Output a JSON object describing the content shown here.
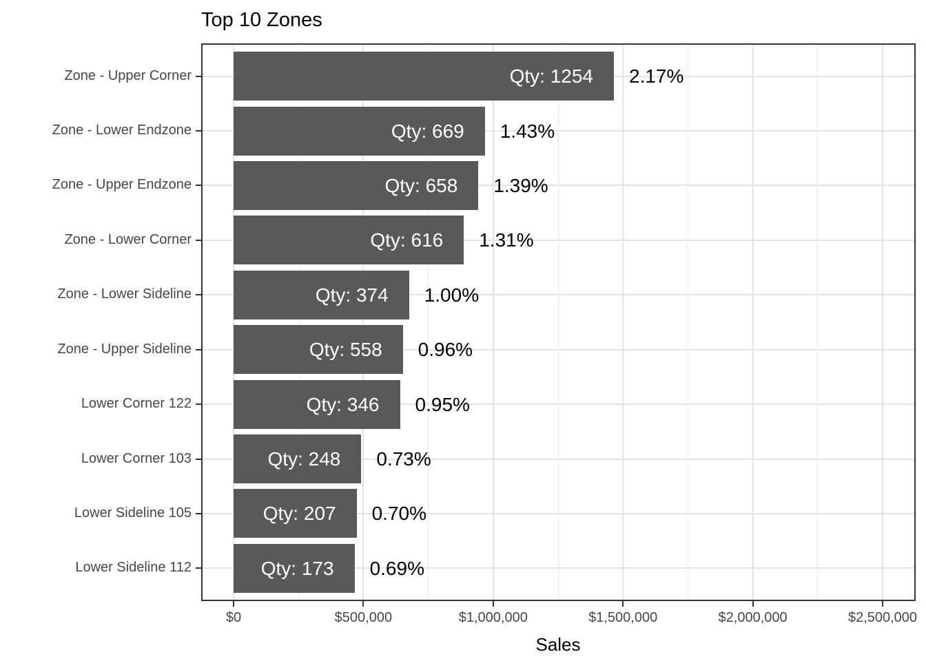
{
  "chart_data": {
    "type": "bar",
    "orientation": "horizontal",
    "title": "Top 10 Zones",
    "xlabel": "Sales",
    "ylabel": "",
    "xlim": [
      0,
      2500000
    ],
    "grid": "major-vertical-and-horizontal-with-minor-vertical",
    "legend": "none",
    "x_ticks": [
      {
        "value": 0,
        "label": "$0"
      },
      {
        "value": 500000,
        "label": "$500,000"
      },
      {
        "value": 1000000,
        "label": "$1,000,000"
      },
      {
        "value": 1500000,
        "label": "$1,500,000"
      },
      {
        "value": 2000000,
        "label": "$2,000,000"
      },
      {
        "value": 2500000,
        "label": "$2,500,000"
      }
    ],
    "x_minor_ticks": [
      250000,
      750000,
      1250000,
      1750000,
      2250000
    ],
    "bars": [
      {
        "zone": "Zone - Upper Corner",
        "sales_est": 1465000,
        "qty": 1254,
        "qty_label": "Qty: 1254",
        "pct_label": "2.17%"
      },
      {
        "zone": "Zone - Lower Endzone",
        "sales_est": 968000,
        "qty": 669,
        "qty_label": "Qty: 669",
        "pct_label": "1.43%"
      },
      {
        "zone": "Zone - Upper Endzone",
        "sales_est": 943000,
        "qty": 658,
        "qty_label": "Qty: 658",
        "pct_label": "1.39%"
      },
      {
        "zone": "Zone - Lower Corner",
        "sales_est": 887000,
        "qty": 616,
        "qty_label": "Qty: 616",
        "pct_label": "1.31%"
      },
      {
        "zone": "Zone - Lower Sideline",
        "sales_est": 676000,
        "qty": 374,
        "qty_label": "Qty: 374",
        "pct_label": "1.00%"
      },
      {
        "zone": "Zone - Upper Sideline",
        "sales_est": 652000,
        "qty": 558,
        "qty_label": "Qty: 558",
        "pct_label": "0.96%"
      },
      {
        "zone": "Lower Corner 122",
        "sales_est": 641000,
        "qty": 346,
        "qty_label": "Qty: 346",
        "pct_label": "0.95%"
      },
      {
        "zone": "Lower Corner 103",
        "sales_est": 492000,
        "qty": 248,
        "qty_label": "Qty: 248",
        "pct_label": "0.73%"
      },
      {
        "zone": "Lower Sideline 105",
        "sales_est": 474000,
        "qty": 207,
        "qty_label": "Qty: 207",
        "pct_label": "0.70%"
      },
      {
        "zone": "Lower Sideline 112",
        "sales_est": 466000,
        "qty": 173,
        "qty_label": "Qty: 173",
        "pct_label": "0.69%"
      }
    ],
    "colors": {
      "bar_fill": "#595959",
      "bar_label_text": "#FFFFFF",
      "pct_label_text": "#000000",
      "grid_major": "#E3E3E3",
      "grid_minor": "#EDEDED",
      "panel_border": "#333333",
      "axis_text": "#464646",
      "tick_mark": "#333333",
      "title_text": "#000000",
      "background": "#FFFFFF"
    }
  }
}
